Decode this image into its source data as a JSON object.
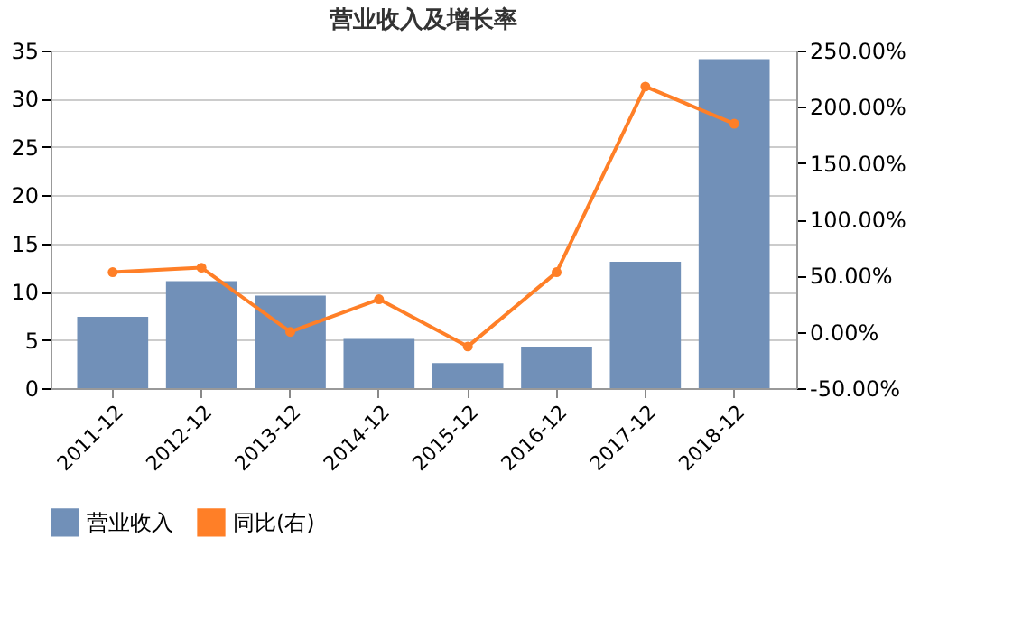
{
  "chart_data": {
    "type": "bar",
    "title": "营业收入及增长率",
    "categories": [
      "2011-12",
      "2012-12",
      "2013-12",
      "2014-12",
      "2015-12",
      "2016-12",
      "2017-12",
      "2018-12"
    ],
    "series": [
      {
        "name": "营业收入",
        "color": "#7190b8",
        "values": [
          7.4,
          11.1,
          9.6,
          5.1,
          2.6,
          4.3,
          13.1,
          34.1
        ]
      },
      {
        "name": "同比(右)",
        "type": "line",
        "axis": "y2",
        "color": "#ff7f27",
        "marker": "circle",
        "values": [
          53,
          57,
          0,
          29,
          -13,
          53,
          218,
          185
        ]
      }
    ],
    "ylim": [
      0,
      35
    ],
    "yticks": [
      0,
      5,
      10,
      15,
      20,
      25,
      30,
      35
    ],
    "y2lim": [
      -50,
      250
    ],
    "y2ticks": [
      {
        "value": -50,
        "label": "-50.00%"
      },
      {
        "value": 0,
        "label": "0.00%"
      },
      {
        "value": 50,
        "label": "50.00%"
      },
      {
        "value": 100,
        "label": "100.00%"
      },
      {
        "value": 150,
        "label": "150.00%"
      },
      {
        "value": 200,
        "label": "200.00%"
      },
      {
        "value": 250,
        "label": "250.00%"
      }
    ],
    "grid": "y",
    "legend": "bottom"
  }
}
